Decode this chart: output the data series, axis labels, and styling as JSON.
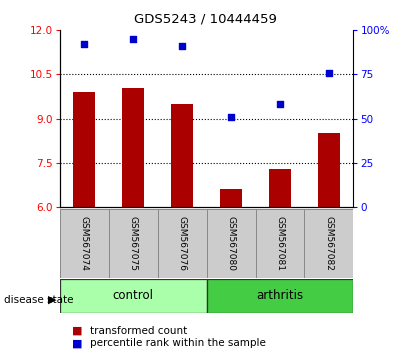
{
  "title": "GDS5243 / 10444459",
  "samples": [
    "GSM567074",
    "GSM567075",
    "GSM567076",
    "GSM567080",
    "GSM567081",
    "GSM567082"
  ],
  "bar_values": [
    9.9,
    10.05,
    9.5,
    6.6,
    7.3,
    8.5
  ],
  "scatter_values": [
    92,
    95,
    91,
    51,
    58,
    76
  ],
  "bar_color": "#aa0000",
  "scatter_color": "#0000cc",
  "ylim_left": [
    6,
    12
  ],
  "ylim_right": [
    0,
    100
  ],
  "yticks_left": [
    6,
    7.5,
    9,
    10.5,
    12
  ],
  "yticks_right": [
    0,
    25,
    50,
    75,
    100
  ],
  "ytick_labels_right": [
    "0",
    "25",
    "50",
    "75",
    "100%"
  ],
  "groups": [
    {
      "label": "control",
      "indices": [
        0,
        1,
        2
      ],
      "color": "#aaffaa"
    },
    {
      "label": "arthritis",
      "indices": [
        3,
        4,
        5
      ],
      "color": "#44cc44"
    }
  ],
  "disease_state_label": "disease state",
  "legend_bar_label": "transformed count",
  "legend_scatter_label": "percentile rank within the sample",
  "bar_bottom": 6,
  "grid_yticks": [
    7.5,
    9.0,
    10.5
  ],
  "sample_label_color": "#cccccc",
  "sample_border_color": "#888888"
}
